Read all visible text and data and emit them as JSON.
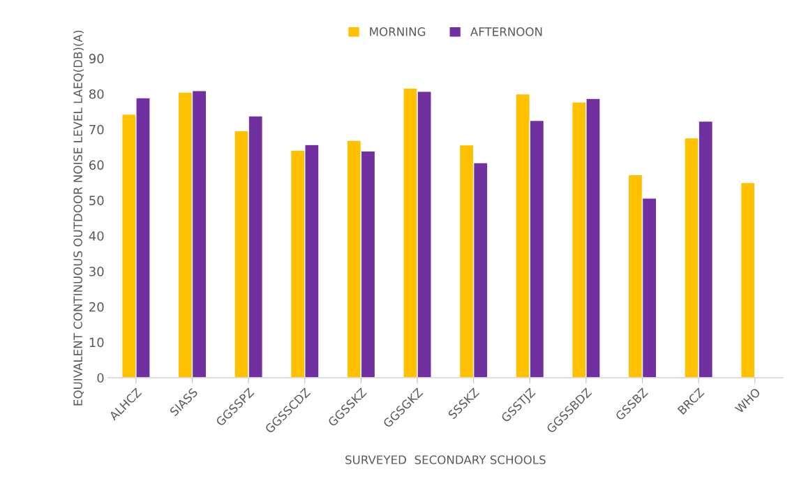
{
  "chart_data": {
    "type": "bar",
    "xlabel": "SURVEYED  SECONDARY SCHOOLS",
    "ylabel": "EQUIVALENT CONTINUOUS OUTDOOR NOISE LEVEL LAEQ(DB)(A)",
    "categories": [
      "ALHCZ",
      "SIASS",
      "GGSSPZ",
      "GGSSCDZ",
      "GGSSKZ",
      "GGSGKZ",
      "SSSKZ",
      "GSSTJZ",
      "GGSSBDZ",
      "GSSBZ",
      "BRCZ",
      "WHO"
    ],
    "series": [
      {
        "name": "MORNING",
        "color": "#ffc000",
        "values": [
          74.3,
          80.5,
          69.6,
          64.1,
          66.9,
          81.6,
          65.6,
          80.0,
          77.7,
          57.2,
          67.6,
          55.0
        ]
      },
      {
        "name": "AFTERNOON",
        "color": "#7030a0",
        "values": [
          78.9,
          80.9,
          73.8,
          65.7,
          63.9,
          80.7,
          60.6,
          72.5,
          78.7,
          50.6,
          72.3,
          null
        ]
      }
    ],
    "ylim": [
      0,
      90
    ],
    "yticks": [
      0,
      10,
      20,
      30,
      40,
      50,
      60,
      70,
      80,
      90
    ],
    "legend": "top",
    "grid": false
  }
}
